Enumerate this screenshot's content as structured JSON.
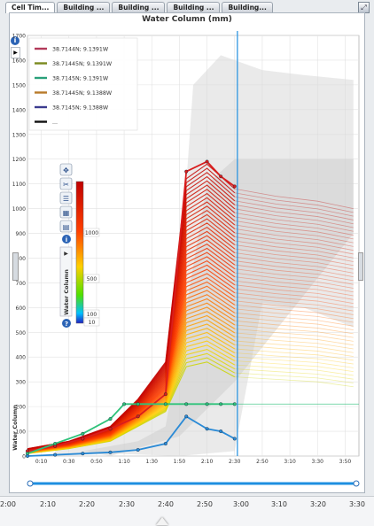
{
  "tabs": [
    {
      "label": "Cell Tim...",
      "active": true
    },
    {
      "label": "Building ...",
      "active": false
    },
    {
      "label": "Building ...",
      "active": false
    },
    {
      "label": "Building ...",
      "active": false
    },
    {
      "label": "Building...",
      "active": false
    }
  ],
  "colors": {
    "accent": "#1e8fe0",
    "legend_colors": [
      "#b23a5a",
      "#7a8a1e",
      "#2aa07a",
      "#b87a2a",
      "#3b3b8f",
      "#111111"
    ]
  },
  "chart_data": {
    "type": "line",
    "title": "Water Column (mm)",
    "ylabel": "",
    "xlabel": "",
    "ylim": [
      0,
      1700
    ],
    "y_ticks": [
      "0",
      "100",
      "200",
      "300",
      "400",
      "500",
      "600",
      "700",
      "800",
      "900",
      "1000",
      "1100",
      "1200",
      "1300",
      "1400",
      "1500",
      "1600",
      "1700"
    ],
    "x_ticks": [
      "0:10",
      "0:30",
      "0:50",
      "1:10",
      "1:30",
      "1:50",
      "2:10",
      "2:30",
      "2:50",
      "3:10",
      "3:30",
      "3:50"
    ],
    "x_tick_minutes": [
      10,
      30,
      50,
      70,
      90,
      110,
      130,
      150,
      170,
      190,
      210,
      230
    ],
    "xlim_minutes": [
      0,
      240
    ],
    "current_time_minutes": 152,
    "legend": [
      "38.7144N; 9.1391W",
      "38.71445N; 9.1391W",
      "38.7145N; 9.1391W",
      "38.71445N; 9.1388W",
      "38.7145N; 9.1388W",
      "..."
    ],
    "series": [
      {
        "name": "38.7144N; 9.1391W",
        "x": [
          0,
          20,
          40,
          60,
          80,
          100,
          115,
          130,
          140,
          150
        ],
        "y": [
          20,
          40,
          70,
          110,
          160,
          250,
          1150,
          1190,
          1130,
          1090
        ]
      },
      {
        "name": "38.7145N; 9.1391W",
        "x": [
          0,
          20,
          40,
          60,
          70,
          80,
          100,
          115,
          130,
          140,
          150
        ],
        "y": [
          10,
          50,
          90,
          150,
          210,
          210,
          210,
          210,
          210,
          210,
          210
        ]
      },
      {
        "name": "38.7145N; 9.1388W",
        "x": [
          0,
          20,
          40,
          60,
          80,
          100,
          115,
          130,
          140,
          150
        ],
        "y": [
          0,
          5,
          10,
          15,
          25,
          50,
          160,
          110,
          100,
          70
        ]
      }
    ],
    "colorbar": {
      "label": "Water Column",
      "ticks": [
        "1000",
        "500",
        "100",
        "10"
      ],
      "min": 10,
      "max": 1000
    }
  },
  "timeline": {
    "labels": [
      "2:00",
      "2:10",
      "2:20",
      "2:30",
      "2:40",
      "2:50",
      "3:00",
      "3:10",
      "3:20",
      "3:30"
    ]
  },
  "toolbar_icons": [
    "move-icon",
    "tools-icon",
    "layers-icon",
    "table-icon",
    "stack-icon",
    "info-icon"
  ]
}
